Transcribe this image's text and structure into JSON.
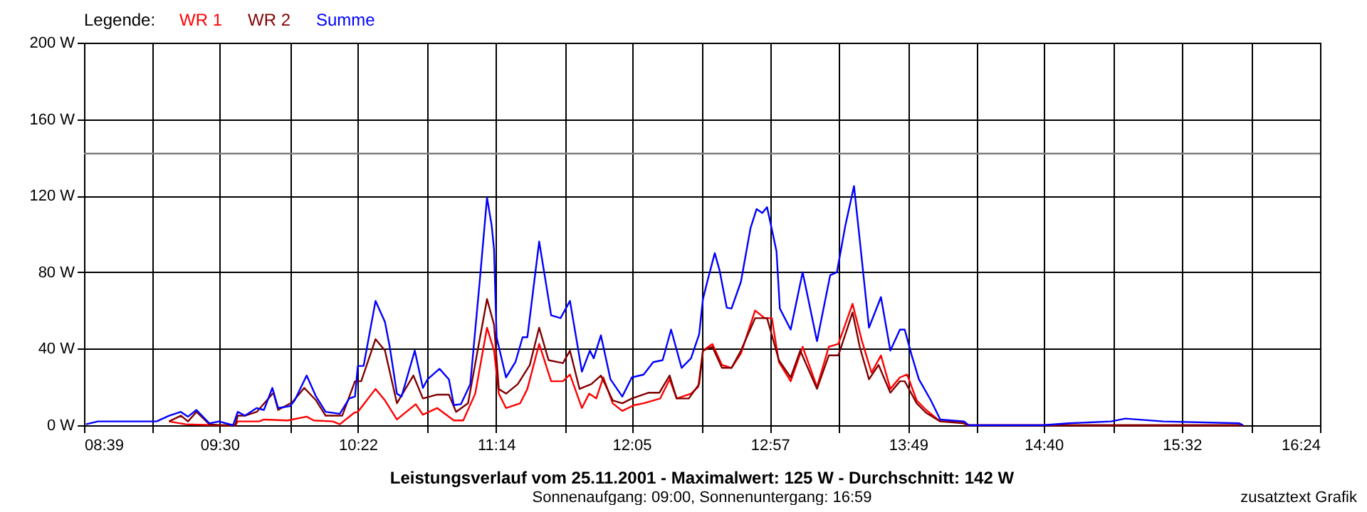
{
  "chart_data": {
    "type": "line",
    "title": "Leistungsverlauf vom 25.11.2001 - Maximalwert: 125 W - Durchschnitt: 142 W",
    "subtitle": "Sonnenaufgang: 09:00, Sonnenuntergang: 16:59",
    "legend_title": "Legende:",
    "annotations": [
      "zusatztext Grafik"
    ],
    "xlim": [
      8.65,
      16.4
    ],
    "xticks": [
      {
        "value": 8.65,
        "label": "08:39"
      },
      {
        "value": 9.0806,
        "label": null
      },
      {
        "value": 9.5,
        "label": "09:30"
      },
      {
        "value": 9.9417,
        "label": null
      },
      {
        "value": 10.3667,
        "label": "10:22"
      },
      {
        "value": 10.8028,
        "label": null
      },
      {
        "value": 11.2333,
        "label": "11:14"
      },
      {
        "value": 11.6639,
        "label": null
      },
      {
        "value": 12.0833,
        "label": "12:05"
      },
      {
        "value": 12.525,
        "label": null
      },
      {
        "value": 12.95,
        "label": "12:57"
      },
      {
        "value": 13.3861,
        "label": null
      },
      {
        "value": 13.8167,
        "label": "13:49"
      },
      {
        "value": 14.2472,
        "label": null
      },
      {
        "value": 14.6667,
        "label": "14:40"
      },
      {
        "value": 15.1083,
        "label": null
      },
      {
        "value": 15.5333,
        "label": "15:32"
      },
      {
        "value": 15.9694,
        "label": null
      },
      {
        "value": 16.4,
        "label": "16:24"
      }
    ],
    "ylim": [
      0,
      200
    ],
    "yticks": [
      {
        "value": 0,
        "label": "0 W"
      },
      {
        "value": 40,
        "label": "40 W"
      },
      {
        "value": 80,
        "label": "80 W"
      },
      {
        "value": 120,
        "label": "120 W"
      },
      {
        "value": 160,
        "label": "160 W"
      },
      {
        "value": 200,
        "label": "200 W"
      }
    ],
    "grid": true,
    "legend": "top left",
    "ref_lines": [
      {
        "axis": "y",
        "value": 142,
        "color": "#808080"
      }
    ],
    "series": [
      {
        "name": "WR 1",
        "color": "#ff0000",
        "x": [
          9.183,
          9.287,
          9.496,
          9.599,
          9.614,
          9.748,
          9.778,
          9.927,
          10.046,
          10.09,
          10.21,
          10.254,
          10.344,
          10.367,
          10.478,
          10.537,
          10.612,
          10.73,
          10.775,
          10.864,
          10.969,
          11.028,
          11.103,
          11.177,
          11.221,
          11.251,
          11.296,
          11.385,
          11.43,
          11.504,
          11.579,
          11.653,
          11.697,
          11.772,
          11.817,
          11.862,
          11.906,
          11.965,
          12.025,
          12.099,
          12.159,
          12.263,
          12.322,
          12.366,
          12.456,
          12.501,
          12.531,
          12.59,
          12.65,
          12.71,
          12.769,
          12.858,
          12.918,
          12.963,
          13.007,
          13.081,
          13.156,
          13.246,
          13.32,
          13.38,
          13.469,
          13.528,
          13.588,
          13.647,
          13.706,
          13.766,
          13.811,
          13.871,
          13.93,
          14.019,
          14.153,
          14.183,
          15.918
        ],
        "values": [
          2,
          0.5,
          0,
          0,
          2,
          2,
          3,
          2.5,
          4.5,
          2.5,
          2,
          0.5,
          6.5,
          7,
          19,
          13,
          3,
          11,
          5.5,
          9,
          2.5,
          2.5,
          16.5,
          51,
          39,
          16.5,
          9,
          11.5,
          19,
          42.5,
          23,
          23,
          26.5,
          9,
          16.5,
          14,
          25,
          11.5,
          7.5,
          10.5,
          11.5,
          14,
          24,
          14,
          16.5,
          20,
          39,
          42.5,
          31.5,
          30,
          37.5,
          60,
          56,
          56,
          33,
          23,
          41,
          20,
          41,
          42.5,
          63.5,
          44,
          27.5,
          36.5,
          19,
          25,
          26.5,
          13,
          8,
          2,
          2,
          0,
          0
        ]
      },
      {
        "name": "WR 2",
        "color": "#800000",
        "x": [
          9.183,
          9.257,
          9.302,
          9.355,
          9.436,
          9.496,
          9.599,
          9.614,
          9.659,
          9.733,
          9.838,
          9.867,
          9.956,
          10.031,
          10.105,
          10.165,
          10.269,
          10.349,
          10.388,
          10.478,
          10.537,
          10.612,
          10.715,
          10.775,
          10.864,
          10.938,
          10.983,
          11.058,
          11.177,
          11.221,
          11.251,
          11.296,
          11.37,
          11.445,
          11.504,
          11.563,
          11.653,
          11.697,
          11.757,
          11.831,
          11.891,
          11.965,
          12.025,
          12.085,
          12.188,
          12.257,
          12.322,
          12.366,
          12.442,
          12.507,
          12.531,
          12.59,
          12.65,
          12.71,
          12.769,
          12.858,
          12.933,
          13.007,
          13.081,
          13.141,
          13.246,
          13.32,
          13.38,
          13.469,
          13.514,
          13.572,
          13.632,
          13.706,
          13.766,
          13.796,
          13.871,
          13.93,
          14.019,
          14.168,
          14.197,
          15.918
        ],
        "values": [
          2,
          5,
          2,
          7,
          0.5,
          0,
          0,
          5,
          5,
          7,
          17,
          8,
          12,
          19.5,
          13,
          5,
          5,
          23,
          23,
          45,
          39,
          11.5,
          26,
          14,
          16,
          16,
          7,
          11.5,
          66,
          52.5,
          19,
          16.5,
          21.5,
          31.5,
          51,
          34,
          32.5,
          39,
          19,
          21.5,
          26,
          13,
          11.5,
          14,
          17,
          17,
          26,
          14,
          14,
          21.5,
          39,
          41,
          30,
          30,
          39,
          56,
          56,
          34,
          25,
          39,
          19,
          36.5,
          36.5,
          59,
          41,
          24,
          31.5,
          17,
          23,
          23,
          11.5,
          6.5,
          2,
          1,
          0,
          0
        ]
      },
      {
        "name": "Summe",
        "color": "#0000ff",
        "x": [
          8.662,
          8.737,
          9.105,
          9.183,
          9.257,
          9.302,
          9.355,
          9.436,
          9.496,
          9.585,
          9.614,
          9.659,
          9.733,
          9.778,
          9.831,
          9.867,
          9.942,
          9.971,
          10.046,
          10.105,
          10.165,
          10.254,
          10.313,
          10.349,
          10.367,
          10.403,
          10.478,
          10.537,
          10.567,
          10.612,
          10.641,
          10.724,
          10.775,
          10.804,
          10.879,
          10.938,
          10.969,
          11.013,
          11.072,
          11.132,
          11.177,
          11.206,
          11.221,
          11.237,
          11.296,
          11.355,
          11.4,
          11.43,
          11.504,
          11.579,
          11.638,
          11.697,
          11.772,
          11.822,
          11.846,
          11.891,
          11.951,
          12.025,
          12.085,
          12.159,
          12.219,
          12.278,
          12.331,
          12.397,
          12.456,
          12.507,
          12.531,
          12.561,
          12.605,
          12.635,
          12.68,
          12.71,
          12.769,
          12.829,
          12.867,
          12.903,
          12.933,
          12.992,
          13.013,
          13.081,
          13.156,
          13.246,
          13.329,
          13.371,
          13.424,
          13.478,
          13.514,
          13.572,
          13.647,
          13.706,
          13.766,
          13.796,
          13.84,
          13.885,
          13.96,
          14.019,
          14.168,
          14.197,
          14.659,
          14.822,
          15.09,
          15.179,
          15.418,
          15.894,
          15.918
        ],
        "values": [
          0.5,
          2,
          2,
          5,
          7,
          4.5,
          8,
          1,
          2,
          0,
          7,
          5,
          9,
          8,
          19.5,
          9,
          10,
          13,
          26,
          15,
          7,
          6,
          14,
          15,
          31,
          31,
          65,
          54,
          41,
          16.5,
          15,
          39,
          19.5,
          24,
          29.5,
          24,
          10.5,
          11,
          21.5,
          76,
          119,
          104.5,
          92,
          46,
          25,
          33,
          46,
          46,
          96,
          57.5,
          56,
          65,
          28,
          39,
          35,
          47,
          24,
          15,
          25,
          26.5,
          33,
          34,
          50,
          30,
          35,
          47.5,
          66,
          76,
          90,
          81,
          61.5,
          61,
          75,
          103,
          113,
          111,
          114,
          91,
          61,
          50,
          80,
          44,
          78.5,
          80,
          104.5,
          125,
          97,
          51,
          67,
          39,
          50,
          50,
          36.5,
          24,
          13,
          3,
          2,
          0,
          0,
          1,
          2,
          3.5,
          2,
          1,
          0
        ]
      }
    ]
  }
}
